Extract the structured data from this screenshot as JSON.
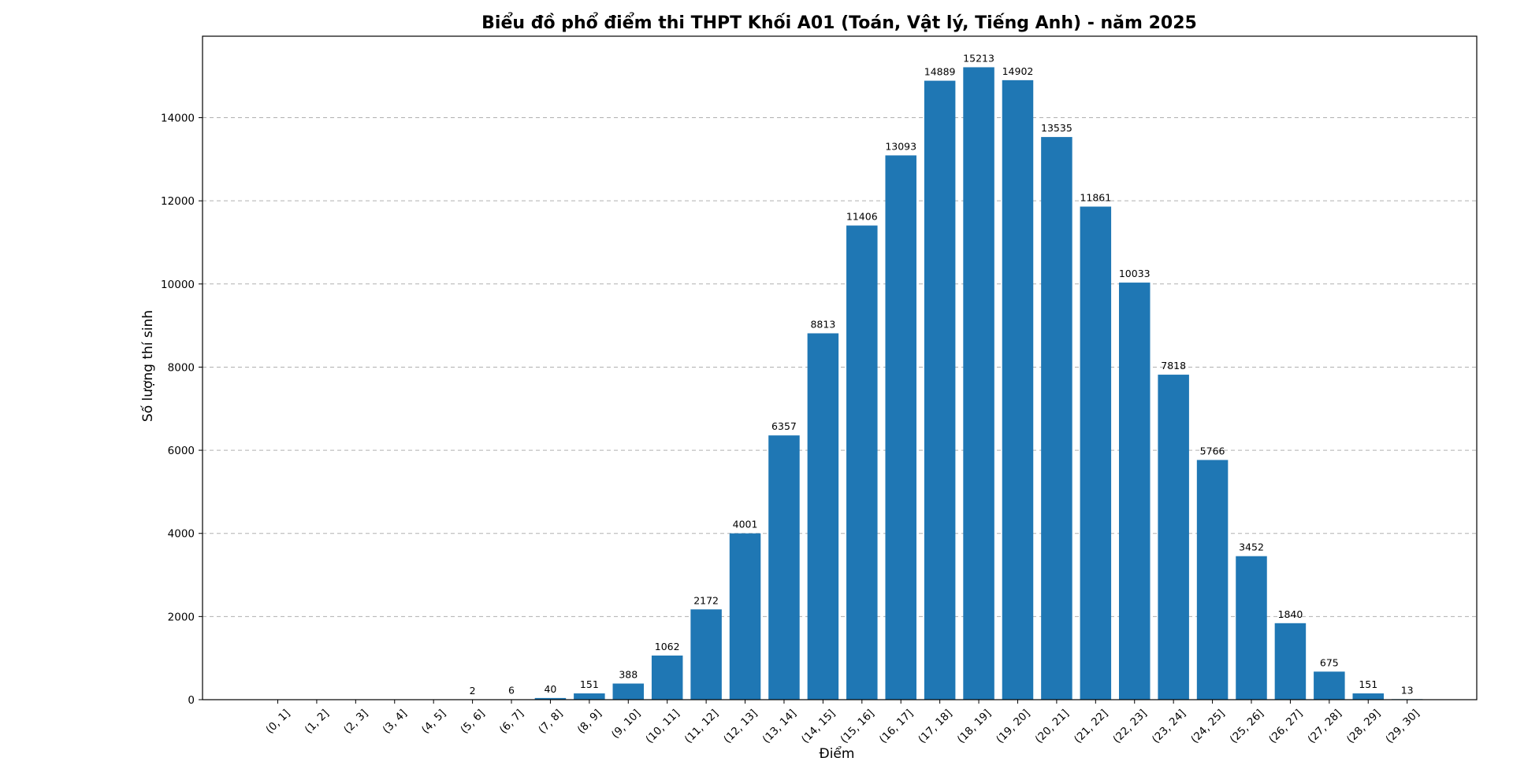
{
  "chart_data": {
    "type": "bar",
    "title": "Biểu đồ phổ điểm thi THPT Khối A01 (Toán, Vật lý, Tiếng Anh) - năm 2025",
    "xlabel": "Điểm",
    "ylabel": "Số lượng thí sinh",
    "categories": [
      "(0, 1]",
      "(1, 2]",
      "(2, 3]",
      "(3, 4]",
      "(4, 5]",
      "(5, 6]",
      "(6, 7]",
      "(7, 8]",
      "(8, 9]",
      "(9, 10]",
      "(10, 11]",
      "(11, 12]",
      "(12, 13]",
      "(13, 14]",
      "(14, 15]",
      "(15, 16]",
      "(16, 17]",
      "(17, 18]",
      "(18, 19]",
      "(19, 20]",
      "(20, 21]",
      "(21, 22]",
      "(22, 23]",
      "(23, 24]",
      "(24, 25]",
      "(25, 26]",
      "(26, 27]",
      "(27, 28]",
      "(28, 29]",
      "(29, 30]"
    ],
    "values": [
      0,
      0,
      0,
      0,
      0,
      2,
      6,
      40,
      151,
      388,
      1062,
      2172,
      4001,
      6357,
      8813,
      11406,
      13093,
      14889,
      15213,
      14902,
      13535,
      11861,
      10033,
      7818,
      5766,
      3452,
      1840,
      675,
      151,
      13
    ],
    "show_value_labels": true,
    "hide_zero_labels": true,
    "ylim": [
      0,
      15960
    ],
    "yticks": [
      0,
      2000,
      4000,
      6000,
      8000,
      10000,
      12000,
      14000
    ],
    "grid": "y-dashed",
    "legend": "none",
    "bar_color": "#1f77b4"
  }
}
